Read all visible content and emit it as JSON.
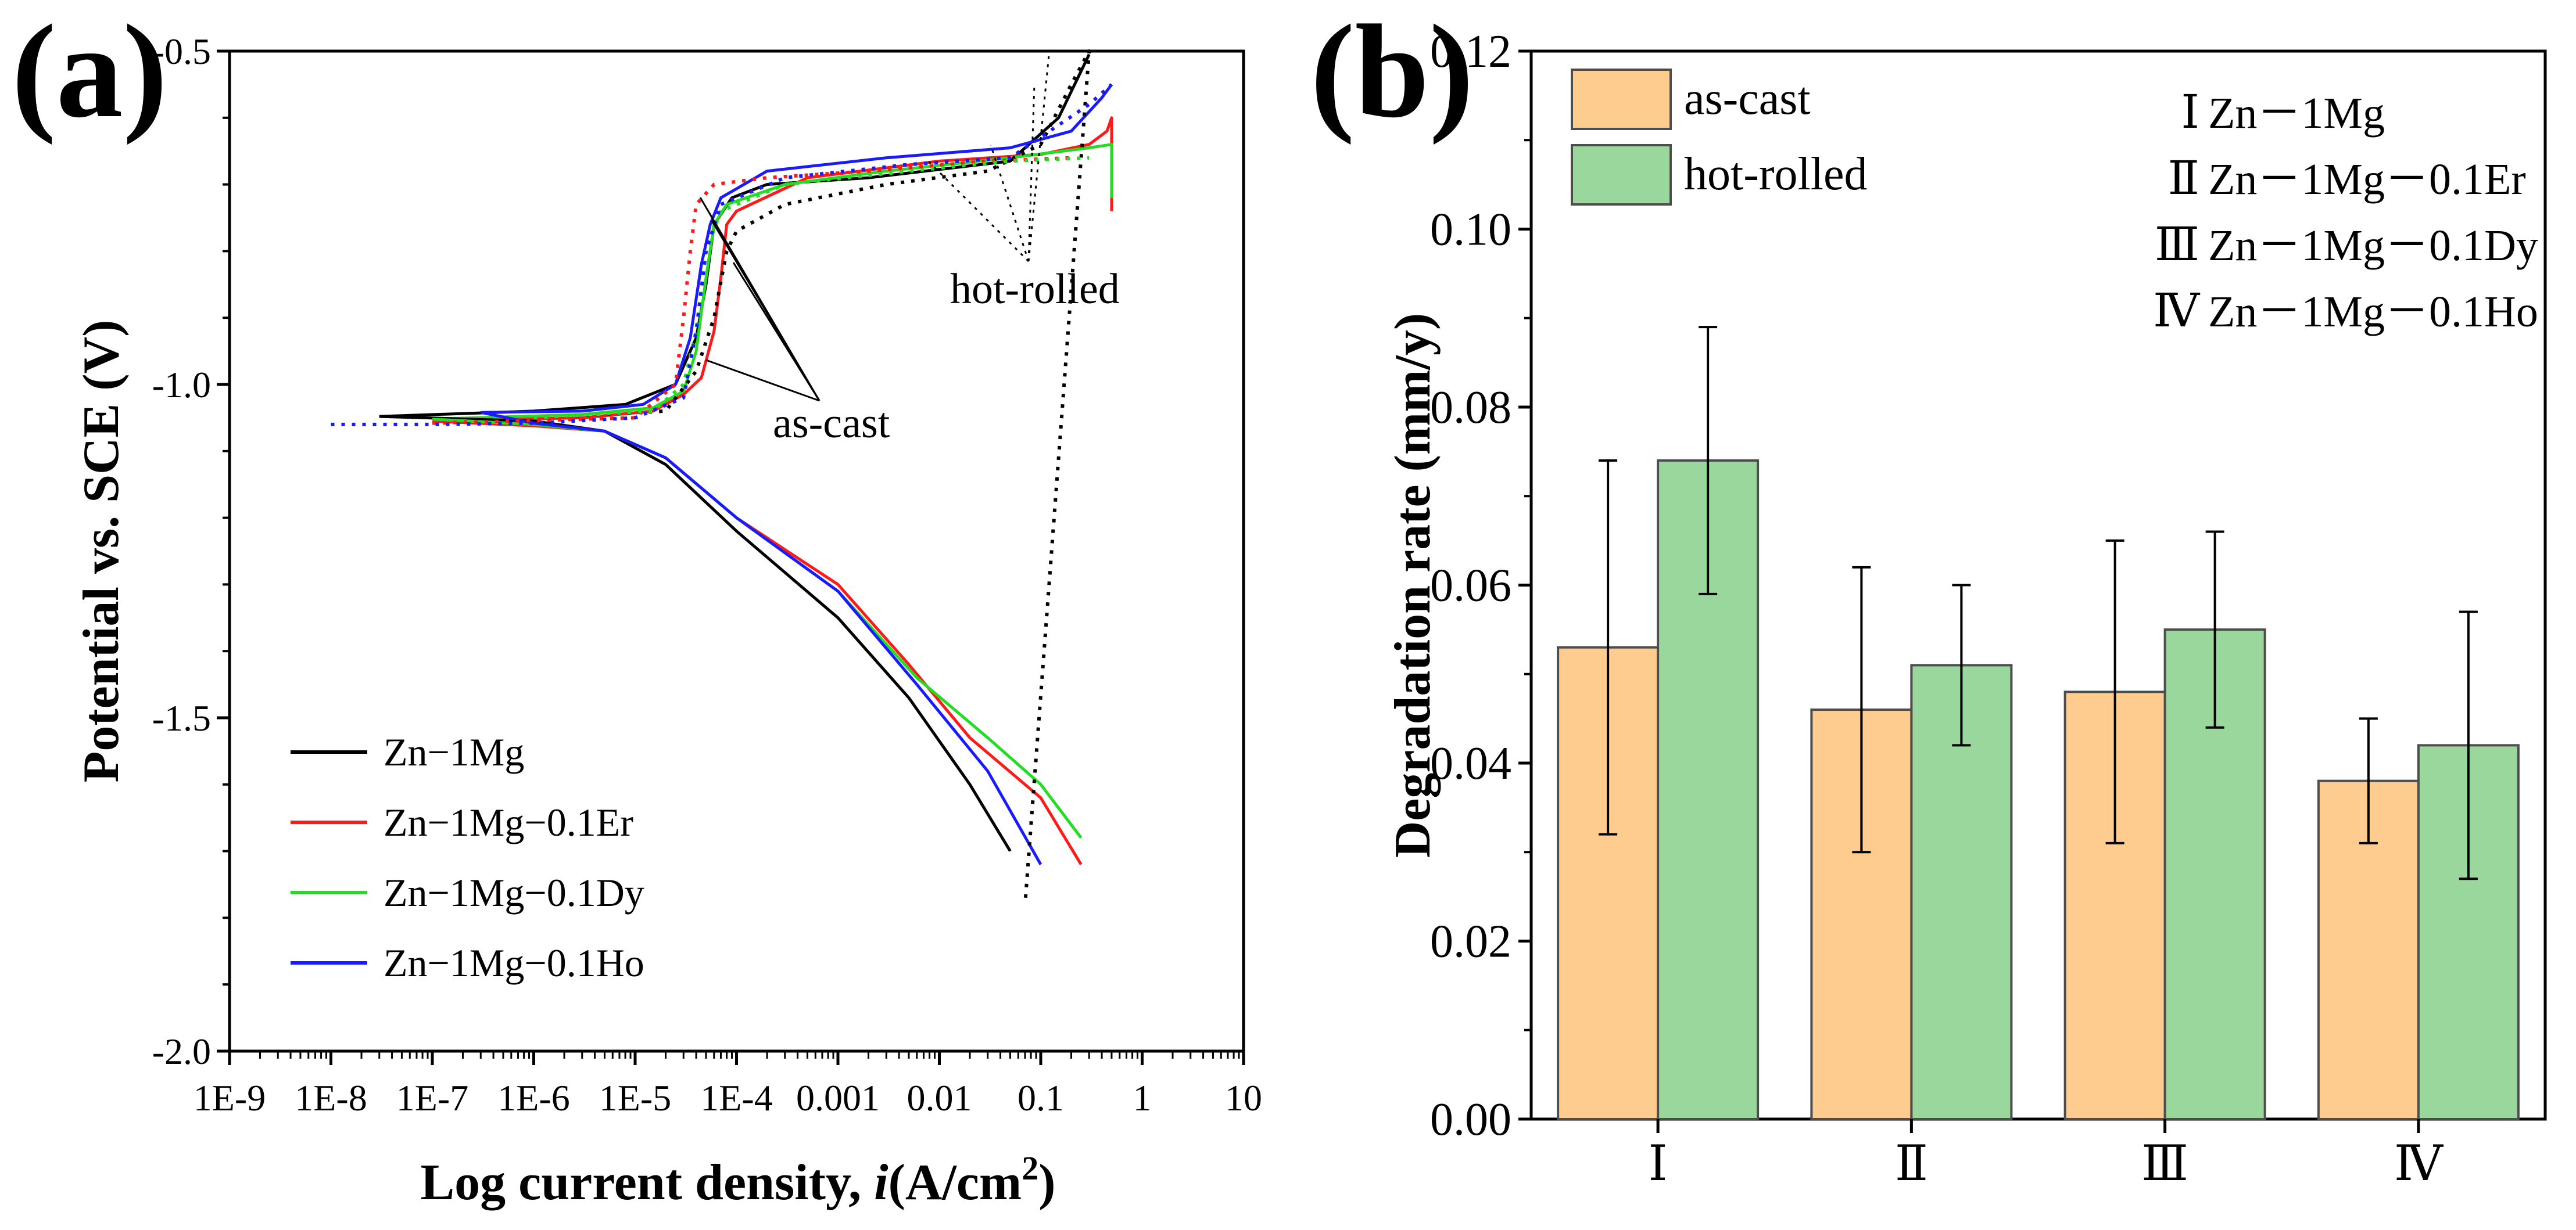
{
  "chart_data": [
    {
      "panel": "(a)",
      "type": "line",
      "title": "",
      "xlabel": "Log current density, ",
      "xlabel_italic": "i",
      "xlabel_unit_pre": "(A/cm",
      "xlabel_unit_sup": "2",
      "xlabel_unit_post": ")",
      "ylabel": "Potential vs. SCE (V)",
      "x_scale": "log",
      "xlim": [
        1e-09,
        10
      ],
      "ylim": [
        -2.0,
        -0.5
      ],
      "x_tick_labels": [
        "1E-9",
        "1E-8",
        "1E-7",
        "1E-6",
        "1E-5",
        "1E-4",
        "0.001",
        "0.01",
        "0.1",
        "1",
        "10"
      ],
      "y_tick_labels": [
        "-0.5",
        "-1.0",
        "-1.5",
        "-2.0"
      ],
      "legend": {
        "position": "bottom-left",
        "entries": [
          {
            "label": "Zn−1Mg",
            "color": "#000000"
          },
          {
            "label": "Zn−1Mg−0.1Er",
            "color": "#ff1a1a"
          },
          {
            "label": "Zn−1Mg−0.1Dy",
            "color": "#22dd22"
          },
          {
            "label": "Zn−1Mg−0.1Ho",
            "color": "#1a1aff"
          }
        ]
      },
      "annotations": [
        {
          "text": "as-cast",
          "style": "solid-leaders"
        },
        {
          "text": "hot-rolled",
          "style": "dotted-leaders"
        }
      ],
      "series": [
        {
          "name": "Zn−1Mg",
          "condition": "as-cast",
          "color": "#000000",
          "dash": "solid",
          "x": [
            3e-08,
            1e-06,
            8e-06,
            2.5e-05,
            4e-05,
            5e-05,
            6e-05,
            9e-05,
            0.0002,
            0.002,
            0.05,
            0.15,
            0.3
          ],
          "y": [
            -1.048,
            -1.04,
            -1.03,
            -1.0,
            -0.93,
            -0.85,
            -0.76,
            -0.72,
            -0.7,
            -0.69,
            -0.665,
            -0.6,
            -0.505
          ]
        },
        {
          "name": "Zn−1Mg−0.1Er",
          "condition": "as-cast",
          "color": "#ff1a1a",
          "dash": "solid",
          "x": [
            1e-07,
            3e-06,
            1.5e-05,
            3e-05,
            4.5e-05,
            6e-05,
            7e-05,
            8e-05,
            0.0001,
            0.0005,
            0.01,
            0.1,
            0.3,
            0.45,
            0.5,
            0.5
          ],
          "y": [
            -1.055,
            -1.05,
            -1.04,
            -1.015,
            -0.99,
            -0.92,
            -0.84,
            -0.76,
            -0.74,
            -0.69,
            -0.665,
            -0.655,
            -0.64,
            -0.62,
            -0.6,
            -0.74
          ]
        },
        {
          "name": "Zn−1Mg−0.1Dy",
          "condition": "as-cast",
          "color": "#22dd22",
          "dash": "solid",
          "x": [
            1e-07,
            3e-06,
            1.5e-05,
            3e-05,
            4e-05,
            5e-05,
            6e-05,
            8e-05,
            0.0003,
            0.003,
            0.05,
            0.3,
            0.5,
            0.5
          ],
          "y": [
            -1.052,
            -1.045,
            -1.035,
            -1.01,
            -0.95,
            -0.84,
            -0.76,
            -0.73,
            -0.7,
            -0.68,
            -0.66,
            -0.645,
            -0.64,
            -0.72
          ]
        },
        {
          "name": "Zn−1Mg−0.1Ho",
          "condition": "as-cast",
          "color": "#1a1aff",
          "dash": "solid",
          "x": [
            3e-07,
            3e-06,
            1.2e-05,
            2.5e-05,
            3.5e-05,
            4.5e-05,
            5.5e-05,
            7e-05,
            0.0002,
            0.003,
            0.05,
            0.2,
            0.4,
            0.5
          ],
          "y": [
            -1.042,
            -1.04,
            -1.03,
            -1.0,
            -0.93,
            -0.82,
            -0.76,
            -0.72,
            -0.68,
            -0.66,
            -0.645,
            -0.62,
            -0.57,
            -0.55
          ]
        },
        {
          "name": "Zn−1Mg",
          "condition": "as-cast",
          "branch": "cathodic",
          "color": "#000000",
          "dash": "solid",
          "x": [
            3e-08,
            1e-06,
            5e-06,
            2e-05,
            0.0001,
            0.001,
            0.005,
            0.02,
            0.05
          ],
          "y": [
            -1.048,
            -1.055,
            -1.07,
            -1.12,
            -1.22,
            -1.35,
            -1.47,
            -1.6,
            -1.7
          ]
        },
        {
          "name": "Zn−1Mg−0.1Er",
          "condition": "as-cast",
          "branch": "cathodic",
          "color": "#ff1a1a",
          "dash": "solid",
          "x": [
            1e-07,
            1e-06,
            5e-06,
            2e-05,
            0.0001,
            0.001,
            0.005,
            0.02,
            0.1,
            0.25
          ],
          "y": [
            -1.055,
            -1.062,
            -1.07,
            -1.11,
            -1.2,
            -1.3,
            -1.42,
            -1.53,
            -1.62,
            -1.72
          ]
        },
        {
          "name": "Zn−1Mg−0.1Dy",
          "condition": "as-cast",
          "branch": "cathodic",
          "color": "#22dd22",
          "dash": "solid",
          "x": [
            1e-07,
            1e-06,
            5e-06,
            2e-05,
            0.0001,
            0.001,
            0.006,
            0.03,
            0.1,
            0.25
          ],
          "y": [
            -1.052,
            -1.06,
            -1.07,
            -1.11,
            -1.2,
            -1.31,
            -1.44,
            -1.53,
            -1.6,
            -1.68
          ]
        },
        {
          "name": "Zn−1Mg−0.1Ho",
          "condition": "as-cast",
          "branch": "cathodic",
          "color": "#1a1aff",
          "dash": "solid",
          "x": [
            3e-07,
            1e-06,
            5e-06,
            2e-05,
            0.0001,
            0.001,
            0.006,
            0.03,
            0.1
          ],
          "y": [
            -1.042,
            -1.058,
            -1.07,
            -1.11,
            -1.2,
            -1.31,
            -1.45,
            -1.58,
            -1.72
          ]
        },
        {
          "name": "Zn−1Mg",
          "condition": "hot-rolled",
          "color": "#000000",
          "dash": "dotted",
          "x": [
            1e-06,
            2e-05,
            4e-05,
            6e-05,
            8e-05,
            0.0001,
            0.0003,
            0.003,
            0.03,
            0.1,
            0.2,
            0.3,
            0.07
          ],
          "y": [
            -1.05,
            -1.04,
            -0.98,
            -0.9,
            -0.8,
            -0.77,
            -0.73,
            -0.7,
            -0.68,
            -0.64,
            -0.55,
            -0.5,
            -1.78
          ]
        },
        {
          "name": "Zn−1Mg−0.1Er",
          "condition": "hot-rolled",
          "color": "#ff1a1a",
          "dash": "dotted",
          "x": [
            1e-07,
            1e-05,
            2.5e-05,
            3e-05,
            3.5e-05,
            4e-05,
            6e-05,
            0.0002,
            0.002,
            0.03,
            0.2
          ],
          "y": [
            -1.058,
            -1.05,
            -1.0,
            -0.9,
            -0.8,
            -0.73,
            -0.7,
            -0.69,
            -0.68,
            -0.665,
            -0.66
          ]
        },
        {
          "name": "Zn−1Mg−0.1Dy",
          "condition": "hot-rolled",
          "color": "#22dd22",
          "dash": "dotted",
          "x": [
            1e-06,
            1.5e-05,
            3e-05,
            4e-05,
            5e-05,
            7e-05,
            0.0003,
            0.005,
            0.05,
            0.3
          ],
          "y": [
            -1.05,
            -1.04,
            -1.0,
            -0.92,
            -0.8,
            -0.74,
            -0.7,
            -0.68,
            -0.665,
            -0.66
          ]
        },
        {
          "name": "Zn−1Mg−0.1Ho",
          "condition": "hot-rolled",
          "color": "#1a1aff",
          "dash": "dotted",
          "x": [
            1e-08,
            1e-07,
            1e-06,
            1e-05,
            3e-05,
            4e-05,
            5e-05,
            7e-05,
            0.0003,
            0.005,
            0.05,
            0.3,
            0.5
          ],
          "y": [
            -1.06,
            -1.06,
            -1.058,
            -1.05,
            -1.02,
            -0.92,
            -0.8,
            -0.73,
            -0.69,
            -0.67,
            -0.66,
            -0.58,
            -0.55
          ]
        }
      ]
    },
    {
      "panel": "(b)",
      "type": "bar",
      "title": "",
      "xlabel": "",
      "ylabel": "Degradation rate (mm/y)",
      "ylim": [
        0.0,
        0.12
      ],
      "y_tick_labels": [
        "0.00",
        "0.02",
        "0.04",
        "0.06",
        "0.08",
        "0.10",
        "0.12"
      ],
      "categories": [
        "Ⅰ",
        "Ⅱ",
        "Ⅲ",
        "Ⅳ"
      ],
      "legend": {
        "position": "top-left"
      },
      "series": [
        {
          "name": "as-cast",
          "color": "#ffcc8f",
          "values": [
            0.053,
            0.046,
            0.048,
            0.038
          ],
          "error": [
            0.021,
            0.016,
            0.017,
            0.007
          ]
        },
        {
          "name": "hot-rolled",
          "color": "#99d79c",
          "values": [
            0.074,
            0.051,
            0.055,
            0.042
          ],
          "error": [
            0.015,
            0.009,
            0.011,
            0.015
          ]
        }
      ],
      "category_key": [
        {
          "numeral": "Ⅰ",
          "text": "Zn－1Mg"
        },
        {
          "numeral": "Ⅱ",
          "text": "Zn－1Mg－0.1Er"
        },
        {
          "numeral": "Ⅲ",
          "text": "Zn－1Mg－0.1Dy"
        },
        {
          "numeral": "Ⅳ",
          "text": "Zn－1Mg－0.1Ho"
        }
      ]
    }
  ]
}
